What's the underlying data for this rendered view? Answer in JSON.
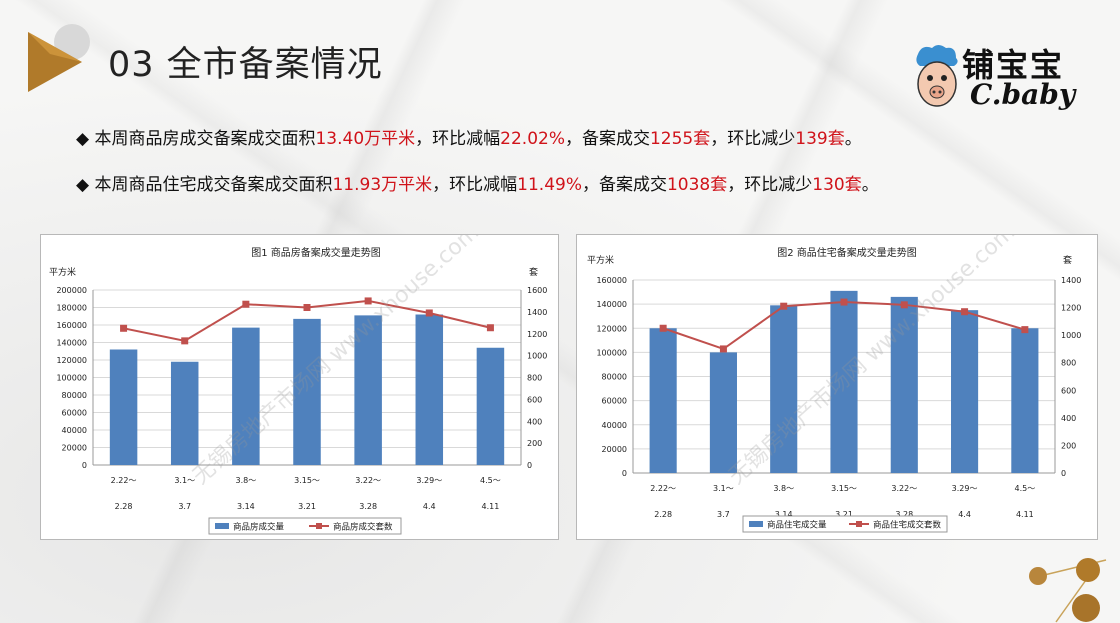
{
  "page": {
    "title": "03 全市备案情况",
    "logo": {
      "cn": "铺宝宝",
      "en": "C.baby"
    }
  },
  "bullets": [
    {
      "pre": "本周商品房成交备案成交面积",
      "v1": "13.40万平米",
      "mid1": "，环比减幅",
      "v2": "22.02%",
      "mid2": "，备案成交",
      "v3": "1255套",
      "mid3": "，环比减少",
      "v4": "139套",
      "post": "。"
    },
    {
      "pre": "本周商品住宅成交备案成交面积",
      "v1": "11.93万平米",
      "mid1": "，环比减幅",
      "v2": "11.49%",
      "mid2": "，备案成交",
      "v3": "1038套",
      "mid3": "，环比减少",
      "v4": "130套",
      "post": "。"
    }
  ],
  "bullet_marker": "◆",
  "watermark": "无锡房地产市场网 www.xhouse.com",
  "chart_data": [
    {
      "type": "bar",
      "title": "图1  商品房备案成交量走势图",
      "ylabel": "平方米",
      "y2label": "套",
      "categories": [
        [
          "2.22～",
          "2.28"
        ],
        [
          "3.1～",
          "3.7"
        ],
        [
          "3.8～",
          "3.14"
        ],
        [
          "3.15～",
          "3.21"
        ],
        [
          "3.22～",
          "3.28"
        ],
        [
          "3.29～",
          "4.4"
        ],
        [
          "4.5～",
          "4.11"
        ]
      ],
      "ylim": [
        0,
        200000
      ],
      "ystep": 20000,
      "y2lim": [
        0,
        1600
      ],
      "y2step": 200,
      "series": [
        {
          "name": "商品房成交量",
          "kind": "bar",
          "axis": "left",
          "color": "#4f81bd",
          "values": [
            132000,
            118000,
            157000,
            167000,
            171000,
            172000,
            134000
          ]
        },
        {
          "name": "商品房成交套数",
          "kind": "line",
          "axis": "right",
          "color": "#c0504d",
          "values": [
            1250,
            1135,
            1470,
            1440,
            1500,
            1390,
            1255
          ]
        }
      ]
    },
    {
      "type": "bar",
      "title": "图2  商品住宅备案成交量走势图",
      "ylabel": "平方米",
      "y2label": "套",
      "categories": [
        [
          "2.22～",
          "2.28"
        ],
        [
          "3.1～",
          "3.7"
        ],
        [
          "3.8～",
          "3.14"
        ],
        [
          "3.15～",
          "3.21"
        ],
        [
          "3.22～",
          "3.28"
        ],
        [
          "3.29～",
          "4.4"
        ],
        [
          "4.5～",
          "4.11"
        ]
      ],
      "ylim": [
        0,
        160000
      ],
      "ystep": 20000,
      "y2lim": [
        0,
        1400
      ],
      "y2step": 200,
      "series": [
        {
          "name": "商品住宅成交量",
          "kind": "bar",
          "axis": "left",
          "color": "#4f81bd",
          "values": [
            120000,
            100000,
            139000,
            151000,
            146000,
            135000,
            120000
          ]
        },
        {
          "name": "商品住宅成交套数",
          "kind": "line",
          "axis": "right",
          "color": "#c0504d",
          "values": [
            1050,
            900,
            1210,
            1240,
            1220,
            1170,
            1040
          ]
        }
      ]
    }
  ]
}
